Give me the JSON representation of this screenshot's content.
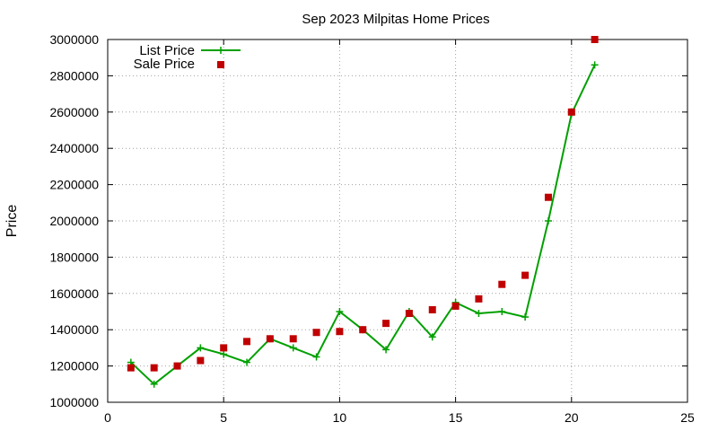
{
  "chart_data": {
    "type": "line",
    "title": "Sep 2023 Milpitas Home Prices",
    "xlabel": "",
    "ylabel": "Price",
    "xlim": [
      0,
      25
    ],
    "ylim": [
      1000000,
      3000000
    ],
    "x_ticks": [
      0,
      5,
      10,
      15,
      20,
      25
    ],
    "y_ticks": [
      1000000,
      1200000,
      1400000,
      1600000,
      1800000,
      2000000,
      2200000,
      2400000,
      2600000,
      2800000,
      3000000
    ],
    "grid": true,
    "legend_position": "top-left",
    "series": [
      {
        "name": "List Price",
        "style": "line+cross",
        "color": "#00a000",
        "x": [
          1,
          2,
          3,
          4,
          5,
          6,
          7,
          8,
          9,
          10,
          11,
          12,
          13,
          14,
          15,
          16,
          17,
          18,
          19,
          20,
          21
        ],
        "y": [
          1220000,
          1100000,
          1200000,
          1300000,
          1265000,
          1220000,
          1350000,
          1300000,
          1250000,
          1500000,
          1400000,
          1290000,
          1500000,
          1360000,
          1550000,
          1490000,
          1500000,
          1470000,
          2000000,
          2590000,
          2860000
        ]
      },
      {
        "name": "Sale Price",
        "style": "square",
        "color": "#c00000",
        "x": [
          1,
          2,
          3,
          4,
          5,
          6,
          7,
          8,
          9,
          10,
          11,
          12,
          13,
          14,
          15,
          16,
          17,
          18,
          19,
          20,
          21
        ],
        "y": [
          1190000,
          1190000,
          1200000,
          1230000,
          1300000,
          1335000,
          1350000,
          1350000,
          1385000,
          1390000,
          1400000,
          1435000,
          1490000,
          1510000,
          1530000,
          1570000,
          1650000,
          1700000,
          2130000,
          2600000,
          3000000
        ]
      }
    ]
  }
}
